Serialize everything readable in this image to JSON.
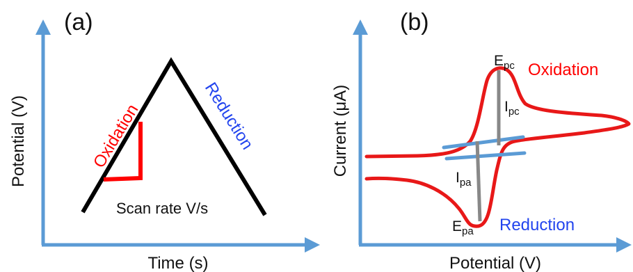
{
  "panel_a": {
    "label": "(a)",
    "x_axis_label": "Time (s)",
    "y_axis_label": "Potential (V)",
    "oxidation_label": "Oxidation",
    "reduction_label": "Reduction",
    "scan_rate_label": "Scan rate V/s"
  },
  "panel_b": {
    "label": "(b)",
    "x_axis_label": "Potential (V)",
    "y_axis_label": "Current (μA)",
    "oxidation_label": "Oxidation",
    "reduction_label": "Reduction",
    "epc": {
      "main": "E",
      "sub": "pc"
    },
    "ipc": {
      "main": "I",
      "sub": "pc"
    },
    "ipa": {
      "main": "I",
      "sub": "pa"
    },
    "epa": {
      "main": "E",
      "sub": "pa"
    }
  },
  "colors": {
    "axis": "#5b9bd5",
    "oxidation": "#ff0000",
    "reduction": "#2244ee",
    "voltammogram": "#e81818",
    "baseline": "#5b9bd5",
    "peak_marker": "#888888",
    "waveform": "#000000"
  }
}
